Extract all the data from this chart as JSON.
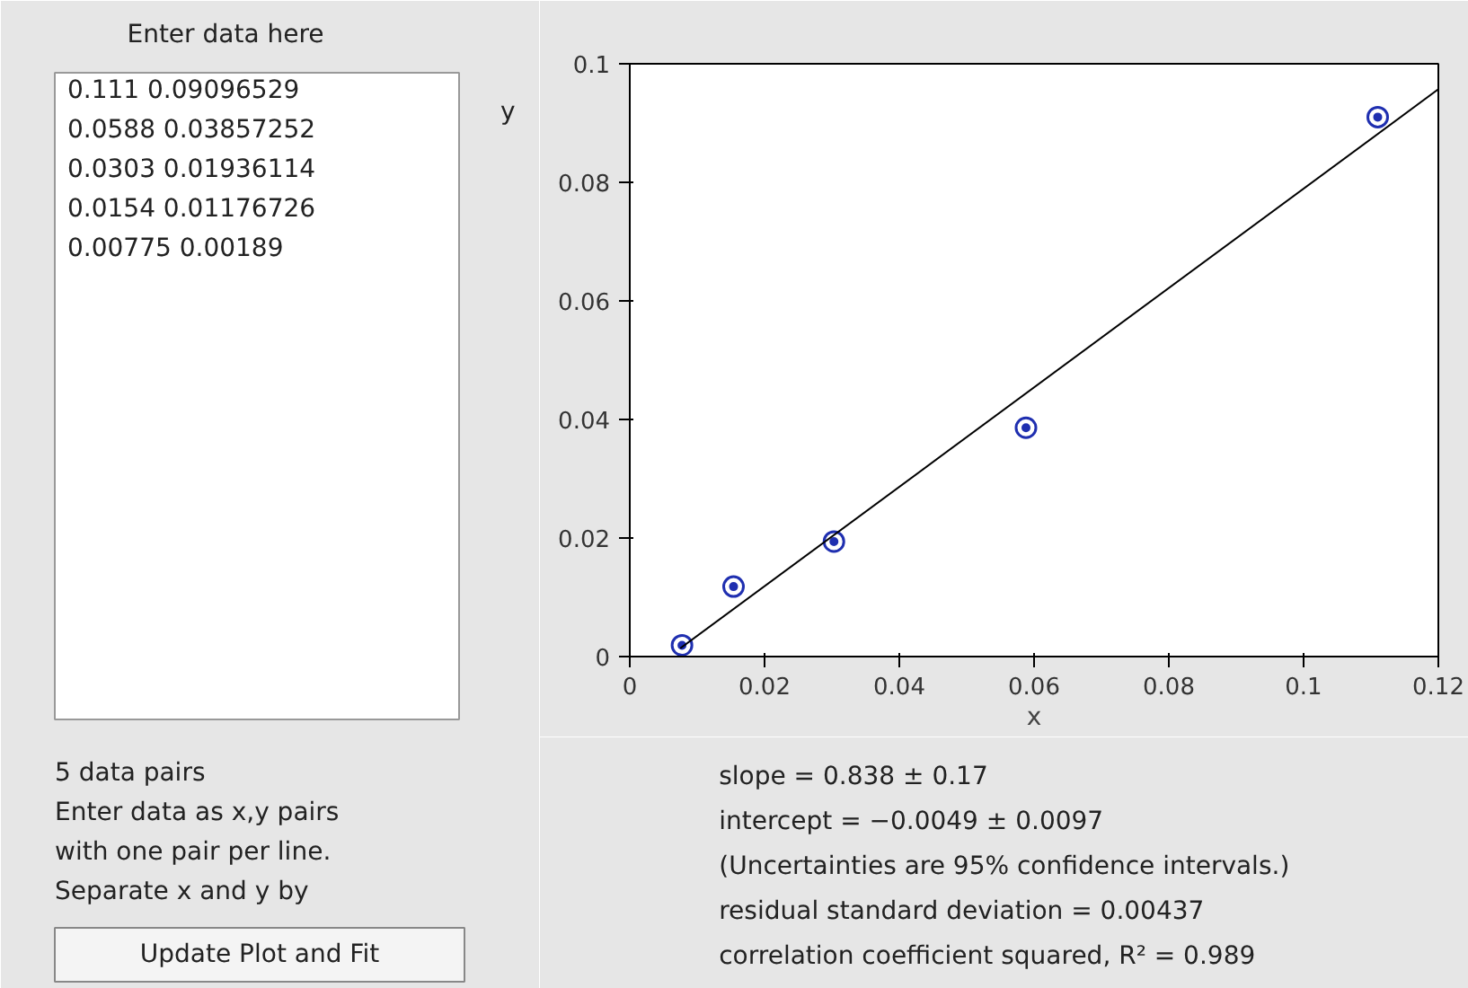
{
  "chart_data": {
    "type": "scatter",
    "xlabel": "x",
    "ylabel": "y",
    "x": [
      0.111,
      0.0588,
      0.0303,
      0.0154,
      0.00775
    ],
    "series": [
      {
        "color": "#1f2fb0",
        "marker": "circle",
        "values": [
          0.091,
          0.0386,
          0.0194,
          0.0118,
          0.0019
        ]
      },
      {
        "type": "line",
        "color": "#000000",
        "x": [
          0.0075,
          0.12
        ],
        "values": [
          0.0014,
          0.0957
        ]
      }
    ],
    "xlim": [
      0,
      0.12
    ],
    "ylim": [
      0,
      0.1
    ],
    "xticks": [
      0,
      0.02,
      0.04,
      0.06,
      0.08,
      0.1,
      0.12
    ],
    "yticks": [
      0,
      0.02,
      0.04,
      0.06,
      0.08,
      0.1
    ],
    "grid": false,
    "annotations": [
      "Enter data here",
      "0.111     0.09096529",
      "0.0588   0.03857252",
      "0.0303   0.01936114",
      "0.0154   0.01176726",
      "0.00775  0.00189",
      "5 data pairs",
      "Enter data as x,y pairs",
      "with one pair per line.",
      "Separate x and y by",
      "Update Plot and Fit",
      "slope = 0.838  ±  0.17",
      "intercept = −0.0049  ±  0.0097",
      "(Uncertainties are 95% confidence intervals.)",
      "residual standard deviation = 0.00437",
      "correlation coefficient squared, R² = 0.989"
    ]
  }
}
